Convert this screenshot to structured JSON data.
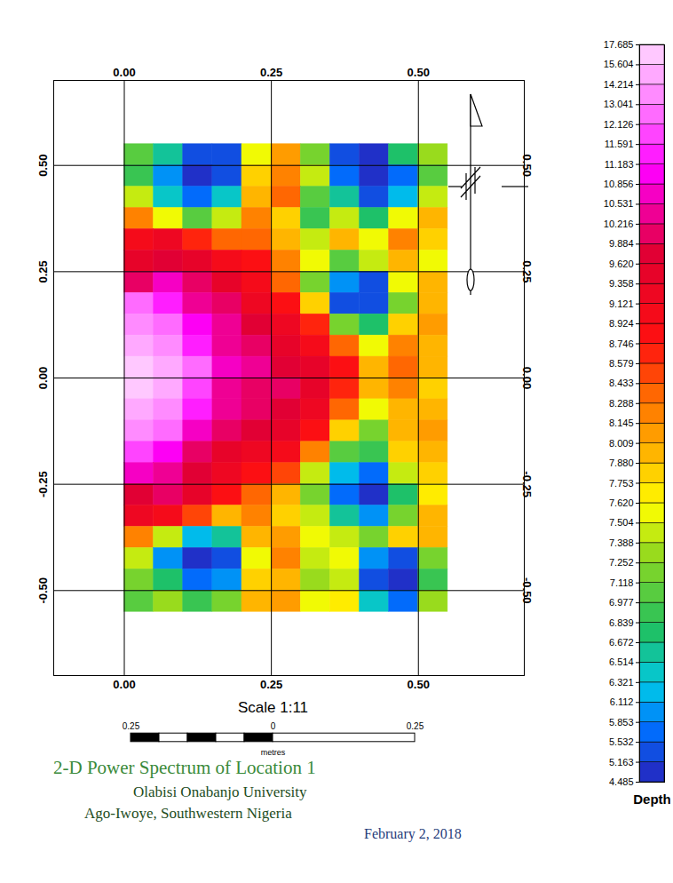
{
  "chart_data": {
    "type": "heatmap",
    "title": "2-D Power Spectrum of Location 1",
    "subtitle": [
      "Olabisi Onabanjo University",
      "Ago-Iwoye, Southwestern Nigeria"
    ],
    "date": "February 2, 2018",
    "scale_label": "Scale 1:11",
    "xlim": [
      -0.12,
      0.68
    ],
    "ylim": [
      -0.7,
      0.7
    ],
    "xticks": [
      {
        "value": 0,
        "label": "0.00"
      },
      0.25,
      {
        "value": 0.5,
        "label": "0.50"
      }
    ],
    "yticks": [
      {
        "value": -0.5,
        "label": "-0.50"
      },
      -0.25,
      {
        "value": 0,
        "label": "0.00"
      },
      0.25,
      {
        "value": 0.5,
        "label": "0.50"
      }
    ],
    "grid": true,
    "x_bins": [
      0,
      0.05,
      0.1,
      0.15,
      0.2,
      0.25,
      0.3,
      0.35,
      0.4,
      0.45,
      0.5,
      0.55
    ],
    "y_bins": [
      0.55,
      0.5,
      0.45,
      0.4,
      0.35,
      0.3,
      0.25,
      0.2,
      0.15,
      0.1,
      0.05,
      0,
      -0.05,
      -0.1,
      -0.15,
      -0.2,
      -0.25,
      -0.3,
      -0.35,
      -0.4,
      -0.45,
      -0.5,
      -0.55
    ],
    "values": [
      [
        7.0,
        6.6,
        5.2,
        5.5,
        7.6,
        8.1,
        7.2,
        5.4,
        5.0,
        6.8,
        7.3
      ],
      [
        6.9,
        5.9,
        4.9,
        5.3,
        7.8,
        8.2,
        7.4,
        5.6,
        4.9,
        5.6,
        7.0
      ],
      [
        7.4,
        6.5,
        5.6,
        6.4,
        8.0,
        8.3,
        7.0,
        6.6,
        5.4,
        6.2,
        7.5
      ],
      [
        8.2,
        7.6,
        7.0,
        7.5,
        8.2,
        7.8,
        6.9,
        7.5,
        6.8,
        7.6,
        8.0
      ],
      [
        9.0,
        9.2,
        8.6,
        8.4,
        8.3,
        8.0,
        7.4,
        7.9,
        7.6,
        8.2,
        7.8
      ],
      [
        9.6,
        9.8,
        9.4,
        9.0,
        8.8,
        8.2,
        7.6,
        7.0,
        7.4,
        8.0,
        7.6
      ],
      [
        10.2,
        10.6,
        10.0,
        9.5,
        9.0,
        8.4,
        7.2,
        5.9,
        5.5,
        7.6,
        7.9
      ],
      [
        12.5,
        11.3,
        10.4,
        9.9,
        9.3,
        8.8,
        7.8,
        5.5,
        5.2,
        7.2,
        8.0
      ],
      [
        14.0,
        12.8,
        10.9,
        10.3,
        9.7,
        9.3,
        8.6,
        7.2,
        6.8,
        7.8,
        8.1
      ],
      [
        15.0,
        14.2,
        11.5,
        10.4,
        10.0,
        9.6,
        9.1,
        8.4,
        7.6,
        8.2,
        7.9
      ],
      [
        16.2,
        15.0,
        12.2,
        10.6,
        10.3,
        9.8,
        9.4,
        8.8,
        8.0,
        8.3,
        8.0
      ],
      [
        16.5,
        15.2,
        12.0,
        10.5,
        10.2,
        9.9,
        9.5,
        8.6,
        7.9,
        8.2,
        7.8
      ],
      [
        15.3,
        14.0,
        11.4,
        10.3,
        10.1,
        9.7,
        9.2,
        8.4,
        7.6,
        8.0,
        7.9
      ],
      [
        13.6,
        12.4,
        10.8,
        10.0,
        9.8,
        9.4,
        8.9,
        7.8,
        7.2,
        7.9,
        8.1
      ],
      [
        12.0,
        11.0,
        10.2,
        9.6,
        9.2,
        9.0,
        8.2,
        7.0,
        6.9,
        7.8,
        8.0
      ],
      [
        10.6,
        10.3,
        9.8,
        9.3,
        8.8,
        8.5,
        7.4,
        6.3,
        5.6,
        7.4,
        7.8
      ],
      [
        9.8,
        9.9,
        9.4,
        8.8,
        8.4,
        8.0,
        7.2,
        5.8,
        5.1,
        6.8,
        7.7
      ],
      [
        9.2,
        9.0,
        8.5,
        8.0,
        8.2,
        7.8,
        7.4,
        6.6,
        6.0,
        7.2,
        7.9
      ],
      [
        8.2,
        7.4,
        6.2,
        6.6,
        7.9,
        8.1,
        7.6,
        7.5,
        7.2,
        7.8,
        8.0
      ],
      [
        7.5,
        6.0,
        5.0,
        5.4,
        7.6,
        8.2,
        7.5,
        7.6,
        6.0,
        5.3,
        7.2
      ],
      [
        7.2,
        6.8,
        5.6,
        6.1,
        7.8,
        8.0,
        7.3,
        7.4,
        5.5,
        4.9,
        6.9
      ],
      [
        7.0,
        7.3,
        6.9,
        7.2,
        7.9,
        8.1,
        7.6,
        7.7,
        6.5,
        5.8,
        7.3
      ]
    ],
    "colorbar": {
      "label": "Depth",
      "range": [
        4.485,
        17.685
      ],
      "ticks": [
        4.485,
        5.163,
        5.532,
        5.853,
        6.112,
        6.321,
        6.514,
        6.672,
        6.839,
        6.977,
        7.118,
        7.252,
        7.388,
        7.504,
        {
          "value": 7.62,
          "label": "7.620"
        },
        7.753,
        {
          "value": 7.88,
          "label": "7.880"
        },
        8.009,
        8.145,
        8.288,
        8.433,
        8.579,
        8.746,
        8.924,
        9.121,
        9.358,
        {
          "value": 9.62,
          "label": "9.620"
        },
        9.884,
        10.216,
        10.531,
        10.856,
        11.183,
        11.591,
        12.126,
        13.041,
        14.214,
        15.604,
        17.685
      ]
    },
    "scale_bar": {
      "range": [
        -0.25,
        0.25
      ],
      "ticks": [
        {
          "value": -0.25,
          "label": "0.25"
        },
        0,
        0.25
      ],
      "label": "metres"
    }
  }
}
